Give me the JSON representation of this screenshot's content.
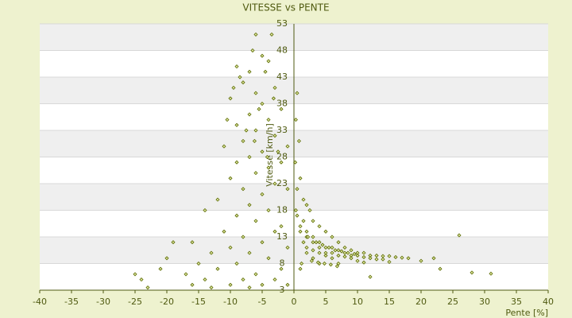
{
  "chart_data": {
    "type": "scatter",
    "title": "VITESSE vs PENTE",
    "x_label": "Pente [%]",
    "y_label": "Vitesse [km/h]",
    "xlim": [
      -40,
      40
    ],
    "xticks": [
      -40,
      -35,
      -30,
      -25,
      -20,
      -15,
      -10,
      -5,
      0,
      5,
      10,
      15,
      20,
      25,
      30,
      35,
      40
    ],
    "ylim": [
      3,
      53
    ],
    "yticks": [
      3,
      8,
      13,
      18,
      23,
      28,
      33,
      38,
      43,
      48,
      53
    ],
    "grid": true,
    "color": "#5a6a00",
    "x": [
      -6,
      -3.5,
      -9,
      -5,
      -7,
      -4,
      -8,
      -6,
      -3,
      -10,
      -5,
      -7,
      -2,
      -9,
      -6,
      -4,
      -8,
      -3,
      -11,
      -5,
      -7,
      -1,
      -9,
      -4,
      -6,
      -2,
      -10,
      -8,
      -3,
      -5,
      -12,
      -7,
      -1,
      -9,
      -4,
      -14,
      -6,
      -2,
      -11,
      -8,
      -3,
      -16,
      -5,
      -10,
      -7,
      -13,
      -1,
      -20,
      -15,
      -9,
      -4,
      -25,
      -17,
      -12,
      -6,
      -2,
      -21,
      -14,
      -8,
      -3,
      -23,
      -16,
      -10,
      -5,
      -1,
      -19,
      -24,
      -13,
      -7,
      -6.5,
      -8.5,
      -4.5,
      -9.5,
      -5.5,
      -3.2,
      -7.5,
      -2.5,
      -10.5,
      -6.2,
      -4.2,
      0.5,
      0.3,
      0.8,
      0.2,
      1,
      0.5,
      1.5,
      0.3,
      2,
      1,
      2.5,
      0.5,
      3,
      1.5,
      4,
      2,
      5,
      3,
      6,
      1,
      4,
      7,
      2,
      5,
      8,
      3,
      6,
      9,
      1.5,
      4,
      10,
      7,
      2,
      5,
      11,
      8,
      3,
      12,
      6,
      9,
      13,
      4,
      10,
      14,
      7,
      15,
      2,
      11,
      16,
      5,
      12,
      17,
      8,
      3,
      13,
      18,
      9,
      6,
      14,
      20,
      22,
      10,
      1,
      4,
      7,
      11,
      15,
      23,
      26,
      28,
      31,
      2.2,
      3.5,
      4.5,
      5.5,
      6.5,
      7.5,
      8.5,
      9.5,
      1.2,
      2.8,
      3.8,
      4.8,
      5.8,
      6.8,
      12
    ],
    "values": [
      51,
      51,
      45,
      47,
      44,
      46,
      42,
      40,
      41,
      39,
      38,
      36,
      37,
      34,
      33,
      35,
      31,
      32,
      30,
      29,
      28,
      30,
      27,
      26,
      25,
      27,
      24,
      22,
      23,
      21,
      20,
      19,
      22,
      17,
      18,
      18,
      16,
      15,
      14,
      13,
      14,
      12,
      12,
      11,
      10,
      10,
      11,
      9,
      8,
      8,
      9,
      6,
      6,
      7,
      6,
      7,
      7,
      5,
      5,
      5,
      3.5,
      4,
      4,
      4,
      4,
      12,
      5,
      3.5,
      3.5,
      48,
      43,
      44,
      41,
      37,
      39,
      33,
      29,
      35,
      31,
      28,
      40,
      35,
      31,
      27,
      24,
      22,
      20,
      18,
      19,
      15,
      18,
      17,
      16,
      16,
      15,
      14,
      14,
      13,
      13,
      14,
      12,
      12,
      13,
      11,
      11,
      12,
      11,
      10.5,
      12,
      11,
      10,
      10.5,
      11,
      10,
      10,
      10,
      10.5,
      9.5,
      10,
      9.5,
      9.5,
      10,
      9.5,
      9.4,
      9.5,
      9.4,
      10,
      9.2,
      9.2,
      9.5,
      9,
      9.1,
      9.3,
      9,
      8.8,
      9,
      9,
      9,
      8.8,
      8.5,
      9,
      8.5,
      7,
      8,
      8,
      8.2,
      8.3,
      7,
      13.3,
      6.3,
      6.1,
      13,
      12,
      11.5,
      11,
      10.5,
      10.3,
      10,
      9.8,
      8,
      8.5,
      8.2,
      8,
      7.8,
      7.5,
      5.5
    ]
  }
}
